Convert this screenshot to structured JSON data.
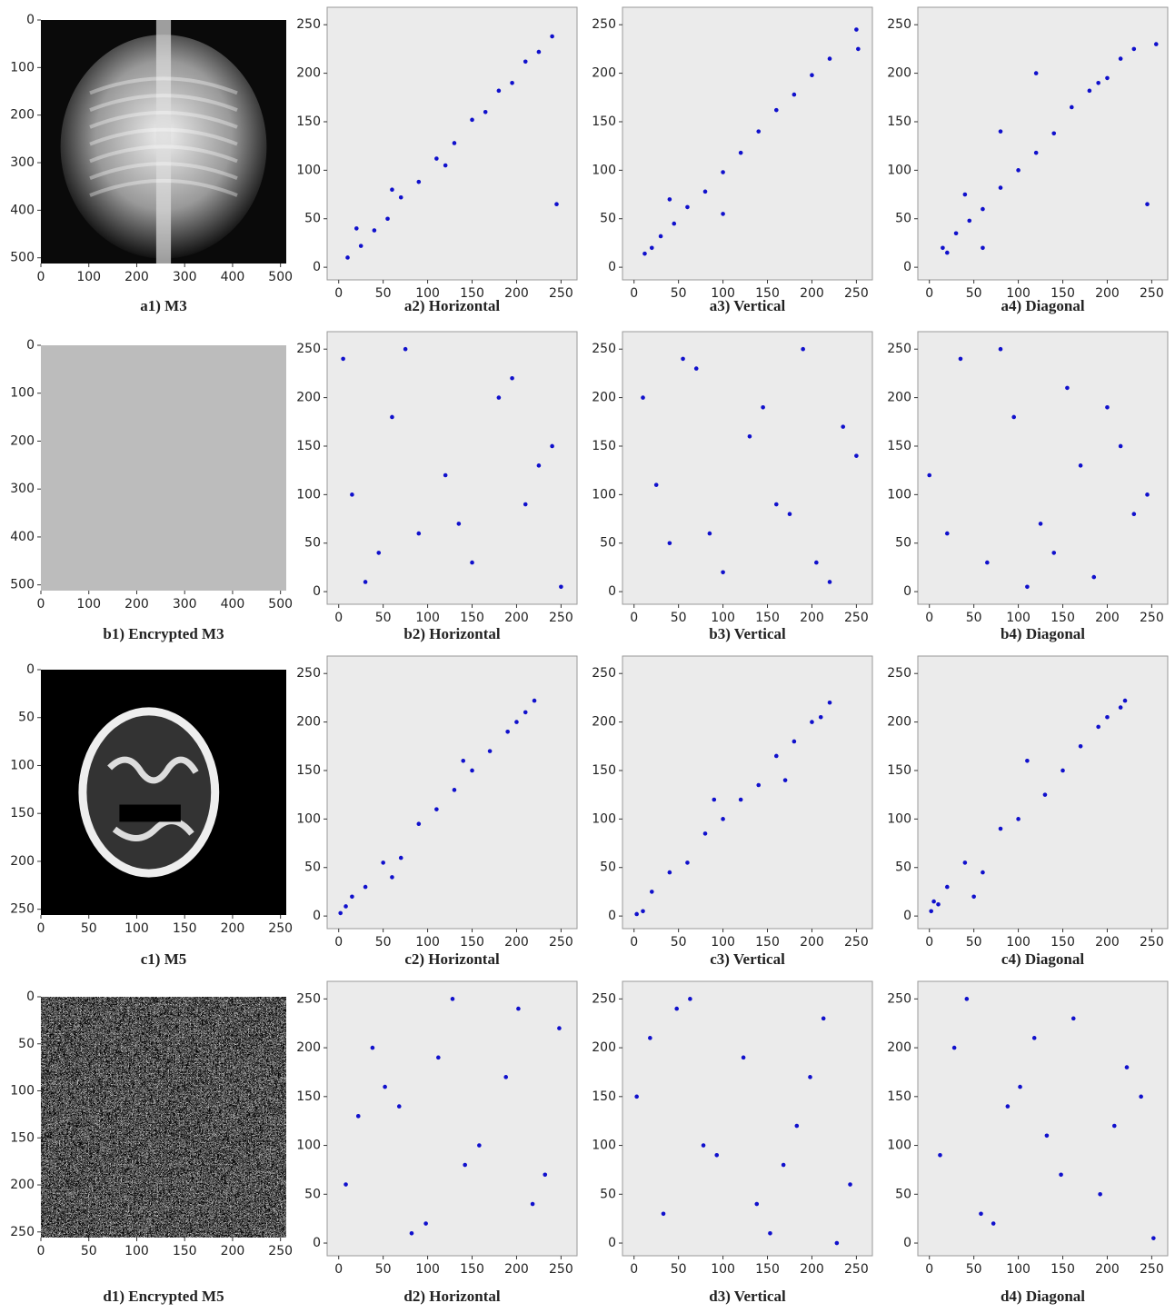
{
  "chart_data": [
    {
      "type": "image",
      "caption": "a1) M3",
      "xlim": [
        0,
        512
      ],
      "ylim": [
        512,
        0
      ],
      "xticks": [
        0,
        100,
        200,
        300,
        400,
        500
      ],
      "yticks": [
        0,
        100,
        200,
        300,
        400,
        500
      ]
    },
    {
      "type": "scatter",
      "caption": "a2) Horizontal",
      "color": "#1010cc",
      "xlim": [
        -13,
        268
      ],
      "ylim": [
        -13,
        268
      ],
      "xticks": [
        0,
        50,
        100,
        150,
        200,
        250
      ],
      "yticks": [
        0,
        50,
        100,
        150,
        200,
        250
      ],
      "x": [
        10,
        25,
        40,
        55,
        70,
        90,
        110,
        130,
        150,
        165,
        180,
        195,
        210,
        225,
        240,
        245,
        20,
        60,
        120
      ],
      "values": [
        10,
        22,
        38,
        50,
        72,
        88,
        112,
        128,
        152,
        160,
        182,
        190,
        212,
        222,
        238,
        65,
        40,
        80,
        105
      ]
    },
    {
      "type": "scatter",
      "caption": "a3) Vertical",
      "color": "#1010cc",
      "xlim": [
        -13,
        268
      ],
      "ylim": [
        -13,
        268
      ],
      "xticks": [
        0,
        50,
        100,
        150,
        200,
        250
      ],
      "yticks": [
        0,
        50,
        100,
        150,
        200,
        250
      ],
      "x": [
        12,
        20,
        30,
        45,
        60,
        80,
        100,
        120,
        140,
        160,
        180,
        200,
        220,
        250,
        252,
        100,
        40
      ],
      "values": [
        14,
        20,
        32,
        45,
        62,
        78,
        98,
        118,
        140,
        162,
        178,
        198,
        215,
        245,
        225,
        55,
        70
      ]
    },
    {
      "type": "scatter",
      "caption": "a4) Diagonal",
      "color": "#1010cc",
      "xlim": [
        -13,
        268
      ],
      "ylim": [
        -13,
        268
      ],
      "xticks": [
        0,
        50,
        100,
        150,
        200,
        250
      ],
      "yticks": [
        0,
        50,
        100,
        150,
        200,
        250
      ],
      "x": [
        15,
        20,
        30,
        45,
        60,
        80,
        100,
        120,
        140,
        160,
        180,
        190,
        200,
        215,
        230,
        245,
        255,
        40,
        80,
        120,
        60
      ],
      "values": [
        20,
        15,
        35,
        48,
        60,
        82,
        100,
        118,
        138,
        165,
        182,
        190,
        195,
        215,
        225,
        65,
        230,
        75,
        140,
        200,
        20
      ]
    },
    {
      "type": "image",
      "caption": "b1) Encrypted M3",
      "xlim": [
        0,
        512
      ],
      "ylim": [
        512,
        0
      ],
      "xticks": [
        0,
        100,
        200,
        300,
        400,
        500
      ],
      "yticks": [
        0,
        100,
        200,
        300,
        400,
        500
      ]
    },
    {
      "type": "scatter",
      "caption": "b2) Horizontal",
      "color": "#1010cc",
      "xlim": [
        -13,
        268
      ],
      "ylim": [
        -13,
        268
      ],
      "xticks": [
        0,
        50,
        100,
        150,
        200,
        250
      ],
      "yticks": [
        0,
        50,
        100,
        150,
        200,
        250
      ],
      "x": [
        5,
        30,
        60,
        90,
        120,
        150,
        180,
        210,
        240,
        250,
        15,
        75,
        135,
        195,
        45,
        225
      ],
      "values": [
        240,
        10,
        180,
        60,
        120,
        30,
        200,
        90,
        150,
        5,
        100,
        250,
        70,
        220,
        40,
        130
      ]
    },
    {
      "type": "scatter",
      "caption": "b3) Vertical",
      "color": "#1010cc",
      "xlim": [
        -13,
        268
      ],
      "ylim": [
        -13,
        268
      ],
      "xticks": [
        0,
        50,
        100,
        150,
        200,
        250
      ],
      "yticks": [
        0,
        50,
        100,
        150,
        200,
        250
      ],
      "x": [
        10,
        40,
        70,
        100,
        130,
        160,
        190,
        220,
        250,
        25,
        85,
        145,
        205,
        55,
        175,
        235
      ],
      "values": [
        200,
        50,
        230,
        20,
        160,
        90,
        250,
        10,
        140,
        110,
        60,
        190,
        30,
        240,
        80,
        170
      ]
    },
    {
      "type": "scatter",
      "caption": "b4) Diagonal",
      "color": "#1010cc",
      "xlim": [
        -13,
        268
      ],
      "ylim": [
        -13,
        268
      ],
      "xticks": [
        0,
        50,
        100,
        150,
        200,
        250
      ],
      "yticks": [
        0,
        50,
        100,
        150,
        200,
        250
      ],
      "x": [
        0,
        35,
        65,
        95,
        125,
        155,
        185,
        215,
        245,
        20,
        80,
        140,
        200,
        110,
        170,
        230
      ],
      "values": [
        120,
        240,
        30,
        180,
        70,
        210,
        15,
        150,
        100,
        60,
        250,
        40,
        190,
        5,
        130,
        80
      ]
    },
    {
      "type": "image",
      "caption": "c1) M5",
      "xlim": [
        0,
        256
      ],
      "ylim": [
        256,
        0
      ],
      "xticks": [
        0,
        50,
        100,
        150,
        200,
        250
      ],
      "yticks": [
        0,
        50,
        100,
        150,
        200,
        250
      ]
    },
    {
      "type": "scatter",
      "caption": "c2) Horizontal",
      "color": "#1010cc",
      "xlim": [
        -13,
        268
      ],
      "ylim": [
        -13,
        268
      ],
      "xticks": [
        0,
        50,
        100,
        150,
        200,
        250
      ],
      "yticks": [
        0,
        50,
        100,
        150,
        200,
        250
      ],
      "x": [
        2,
        8,
        15,
        30,
        50,
        70,
        90,
        110,
        130,
        150,
        170,
        190,
        200,
        210,
        220,
        60,
        140
      ],
      "values": [
        3,
        10,
        20,
        30,
        55,
        60,
        95,
        110,
        130,
        150,
        170,
        190,
        200,
        210,
        222,
        40,
        160
      ]
    },
    {
      "type": "scatter",
      "caption": "c3) Vertical",
      "color": "#1010cc",
      "xlim": [
        -13,
        268
      ],
      "ylim": [
        -13,
        268
      ],
      "xticks": [
        0,
        50,
        100,
        150,
        200,
        250
      ],
      "yticks": [
        0,
        50,
        100,
        150,
        200,
        250
      ],
      "x": [
        3,
        10,
        20,
        40,
        60,
        80,
        100,
        120,
        140,
        160,
        180,
        200,
        210,
        220,
        90,
        170
      ],
      "values": [
        2,
        5,
        25,
        45,
        55,
        85,
        100,
        120,
        135,
        165,
        180,
        200,
        205,
        220,
        120,
        140
      ]
    },
    {
      "type": "scatter",
      "caption": "c4) Diagonal",
      "color": "#1010cc",
      "xlim": [
        -13,
        268
      ],
      "ylim": [
        -13,
        268
      ],
      "xticks": [
        0,
        50,
        100,
        150,
        200,
        250
      ],
      "yticks": [
        0,
        50,
        100,
        150,
        200,
        250
      ],
      "x": [
        2,
        5,
        10,
        20,
        40,
        60,
        80,
        100,
        130,
        150,
        170,
        190,
        200,
        215,
        220,
        110,
        50
      ],
      "values": [
        5,
        15,
        12,
        30,
        55,
        45,
        90,
        100,
        125,
        150,
        175,
        195,
        205,
        215,
        222,
        160,
        20
      ]
    },
    {
      "type": "image",
      "caption": "d1) Encrypted M5",
      "xlim": [
        0,
        256
      ],
      "ylim": [
        256,
        0
      ],
      "xticks": [
        0,
        50,
        100,
        150,
        200,
        250
      ],
      "yticks": [
        0,
        50,
        100,
        150,
        200,
        250
      ]
    },
    {
      "type": "scatter",
      "caption": "d2) Horizontal",
      "color": "#1010cc",
      "xlim": [
        -13,
        268
      ],
      "ylim": [
        -13,
        268
      ],
      "xticks": [
        0,
        50,
        100,
        150,
        200,
        250
      ],
      "yticks": [
        0,
        50,
        100,
        150,
        200,
        250
      ],
      "x": [
        8,
        38,
        68,
        98,
        128,
        158,
        188,
        218,
        248,
        22,
        82,
        142,
        202,
        52,
        112,
        232
      ],
      "values": [
        60,
        200,
        140,
        20,
        250,
        100,
        170,
        40,
        220,
        130,
        10,
        80,
        240,
        160,
        190,
        70
      ]
    },
    {
      "type": "scatter",
      "caption": "d3) Vertical",
      "color": "#1010cc",
      "xlim": [
        -13,
        268
      ],
      "ylim": [
        -13,
        268
      ],
      "xticks": [
        0,
        50,
        100,
        150,
        200,
        250
      ],
      "yticks": [
        0,
        50,
        100,
        150,
        200,
        250
      ],
      "x": [
        3,
        33,
        63,
        93,
        123,
        153,
        183,
        213,
        243,
        18,
        78,
        138,
        198,
        48,
        168,
        228
      ],
      "values": [
        150,
        30,
        250,
        90,
        190,
        10,
        120,
        230,
        60,
        210,
        100,
        40,
        170,
        240,
        80,
        0
      ]
    },
    {
      "type": "scatter",
      "caption": "d4) Diagonal",
      "color": "#1010cc",
      "xlim": [
        -13,
        268
      ],
      "ylim": [
        -13,
        268
      ],
      "xticks": [
        0,
        50,
        100,
        150,
        200,
        250
      ],
      "yticks": [
        0,
        50,
        100,
        150,
        200,
        250
      ],
      "x": [
        12,
        42,
        72,
        102,
        132,
        162,
        192,
        222,
        252,
        28,
        88,
        148,
        208,
        58,
        118,
        238
      ],
      "values": [
        90,
        250,
        20,
        160,
        110,
        230,
        50,
        180,
        5,
        200,
        140,
        70,
        120,
        30,
        210,
        150
      ]
    }
  ]
}
